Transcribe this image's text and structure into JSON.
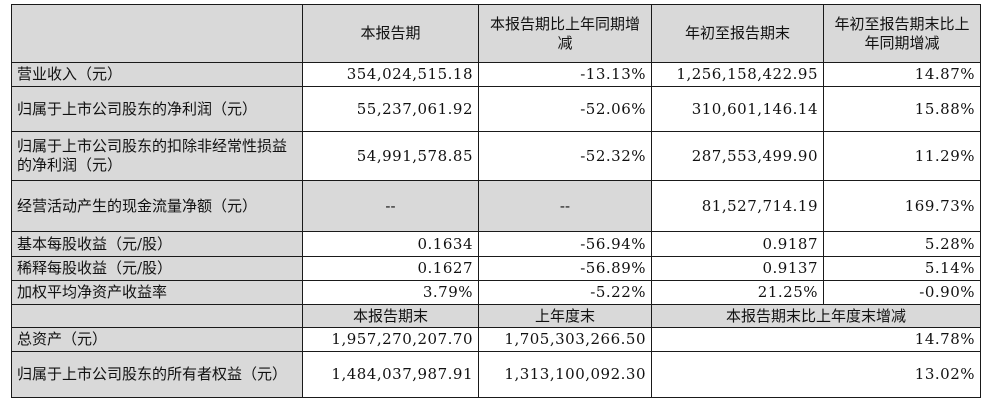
{
  "header": {
    "corner": "",
    "col1": "本报告期",
    "col2": "本报告期比上年同期增减",
    "col3": "年初至报告期末",
    "col4": "年初至报告期末比上年同期增减"
  },
  "rows": [
    {
      "label": "营业收入（元）",
      "v1": "354,024,515.18",
      "v2": "-13.13%",
      "v3": "1,256,158,422.95",
      "v4": "14.87%"
    },
    {
      "label": "归属于上市公司股东的净利润（元）",
      "v1": "55,237,061.92",
      "v2": "-52.06%",
      "v3": "310,601,146.14",
      "v4": "15.88%"
    },
    {
      "label": "归属于上市公司股东的扣除非经常性损益的净利润（元）",
      "v1": "54,991,578.85",
      "v2": "-52.32%",
      "v3": "287,553,499.90",
      "v4": "11.29%"
    },
    {
      "label": "经营活动产生的现金流量净额（元）",
      "v1": "--",
      "v2": "--",
      "v3": "81,527,714.19",
      "v4": "169.73%"
    },
    {
      "label": "基本每股收益（元/股）",
      "v1": "0.1634",
      "v2": "-56.94%",
      "v3": "0.9187",
      "v4": "5.28%"
    },
    {
      "label": "稀释每股收益（元/股）",
      "v1": "0.1627",
      "v2": "-56.89%",
      "v3": "0.9137",
      "v4": "5.14%"
    },
    {
      "label": "加权平均净资产收益率",
      "v1": "3.79%",
      "v2": "-5.22%",
      "v3": "21.25%",
      "v4": "-0.90%"
    }
  ],
  "header2": {
    "corner": "",
    "col1": "本报告期末",
    "col2": "上年度末",
    "col34": "本报告期末比上年度末增减"
  },
  "rows2": [
    {
      "label": "总资产（元）",
      "v1": "1,957,270,207.70",
      "v2": "1,705,303,266.50",
      "v3": "14.78%"
    },
    {
      "label": "归属于上市公司股东的所有者权益（元）",
      "v1": "1,484,037,987.91",
      "v2": "1,313,100,092.30",
      "v3": "13.02%"
    }
  ],
  "colors": {
    "header_bg": "#d9d9d9",
    "border": "#1a1a1a",
    "text": "#111111"
  }
}
